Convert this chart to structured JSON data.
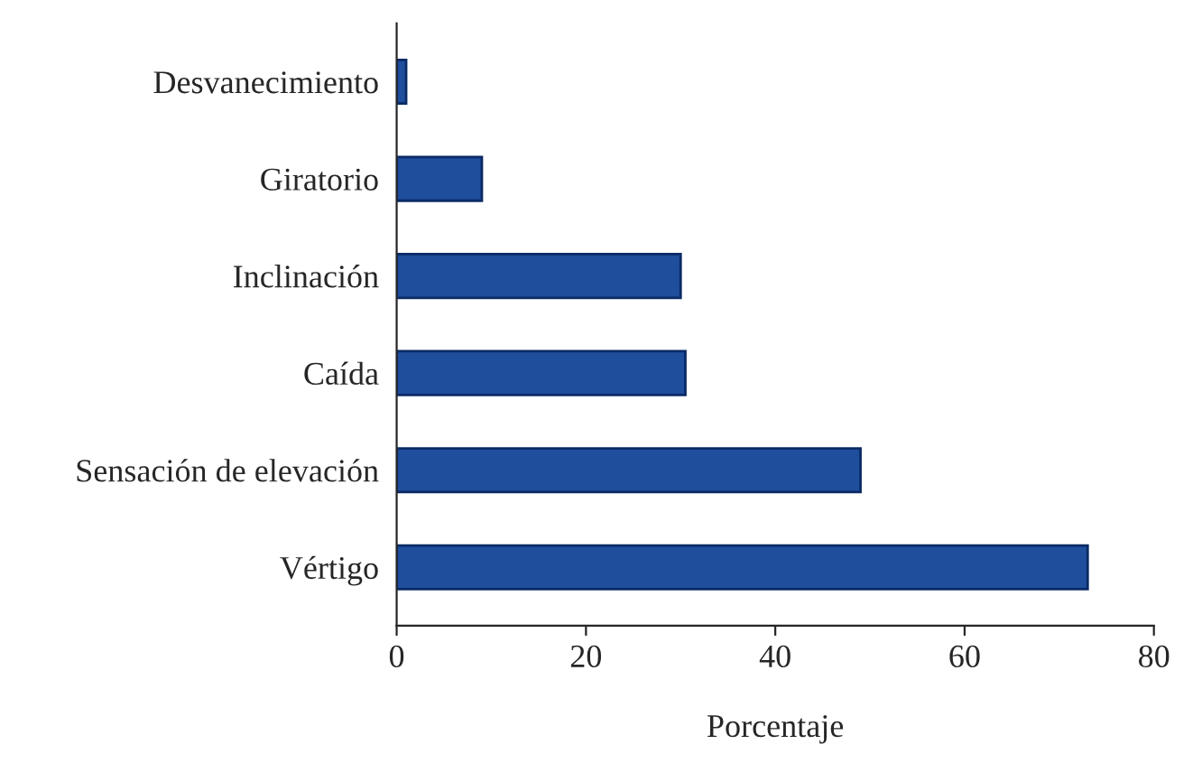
{
  "chart_data": {
    "type": "bar",
    "orientation": "horizontal",
    "xlabel": "Porcentaje",
    "categories": [
      "Desvanecimiento",
      "Giratorio",
      "Inclinación",
      "Caída",
      "Sensación de elevación",
      "Vértigo"
    ],
    "values": [
      1,
      9,
      30,
      30.5,
      49,
      73
    ],
    "color": "#1f4e9c",
    "xlim": [
      0,
      80
    ],
    "xticks": [
      0,
      20,
      40,
      60,
      80
    ],
    "grid": false,
    "legend": false
  }
}
